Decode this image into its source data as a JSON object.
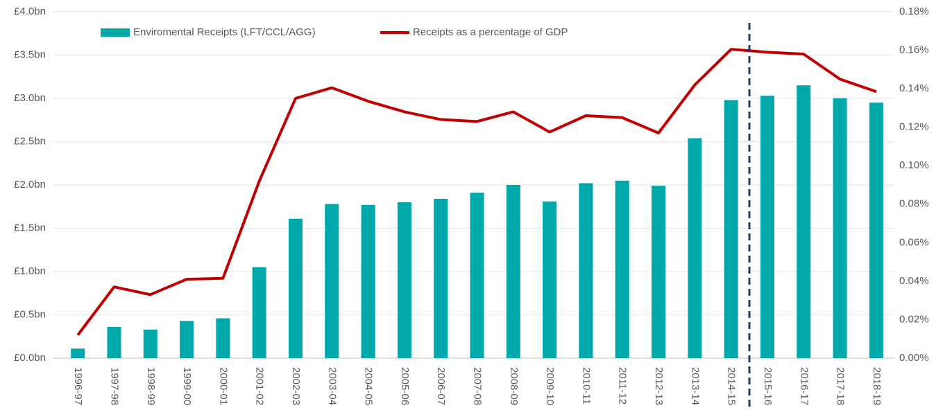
{
  "chart_data": {
    "type": "bar",
    "categories": [
      "1996-97",
      "1997-98",
      "1998-99",
      "1999-00",
      "2000-01",
      "2001-02",
      "2002-03",
      "2003-04",
      "2004-05",
      "2005-06",
      "2006-07",
      "2007-08",
      "2008-09",
      "2009-10",
      "2010-11",
      "2011-12",
      "2012-13",
      "2013-14",
      "2014-15",
      "2015-16",
      "2016-17",
      "2017-18",
      "2018-19"
    ],
    "series": [
      {
        "name": "Enviromental Receipts (LFT/CCL/AGG)",
        "type": "bar",
        "color": "#00a9a9",
        "axis": "y",
        "values": [
          0.11,
          0.36,
          0.33,
          0.43,
          0.46,
          1.05,
          1.61,
          1.78,
          1.77,
          1.8,
          1.84,
          1.91,
          2.0,
          1.81,
          2.02,
          2.05,
          1.99,
          2.54,
          2.98,
          3.03,
          3.15,
          3.0,
          2.95
        ]
      },
      {
        "name": "Receipts as a percentage of GDP",
        "type": "line",
        "color": "#c00000",
        "axis": "y2",
        "values": [
          0.012,
          0.037,
          0.033,
          0.041,
          0.0415,
          0.092,
          0.135,
          0.1405,
          0.1335,
          0.128,
          0.124,
          0.123,
          0.128,
          0.1175,
          0.126,
          0.125,
          0.117,
          0.142,
          0.1605,
          0.159,
          0.158,
          0.145,
          0.1385
        ]
      }
    ],
    "ylim": [
      0,
      4
    ],
    "yticks": [
      {
        "value": 0,
        "label": "£0.0bn"
      },
      {
        "value": 0.5,
        "label": "£0.5bn"
      },
      {
        "value": 1,
        "label": "£1.0bn"
      },
      {
        "value": 1.5,
        "label": "£1.5bn"
      },
      {
        "value": 2,
        "label": "£2.0bn"
      },
      {
        "value": 2.5,
        "label": "£2.5bn"
      },
      {
        "value": 3,
        "label": "£3.0bn"
      },
      {
        "value": 3.5,
        "label": "£3.5bn"
      },
      {
        "value": 4,
        "label": "£4.0bn"
      }
    ],
    "y2lim": [
      0,
      0.18
    ],
    "y2ticks": [
      {
        "value": 0,
        "label": "0.00%"
      },
      {
        "value": 0.02,
        "label": "0.02%"
      },
      {
        "value": 0.04,
        "label": "0.04%"
      },
      {
        "value": 0.06,
        "label": "0.06%"
      },
      {
        "value": 0.08,
        "label": "0.08%"
      },
      {
        "value": 0.1,
        "label": "0.10%"
      },
      {
        "value": 0.12,
        "label": "0.12%"
      },
      {
        "value": 0.14,
        "label": "0.14%"
      },
      {
        "value": 0.16,
        "label": "0.16%"
      },
      {
        "value": 0.18,
        "label": "0.18%"
      }
    ],
    "grid": true
  }
}
